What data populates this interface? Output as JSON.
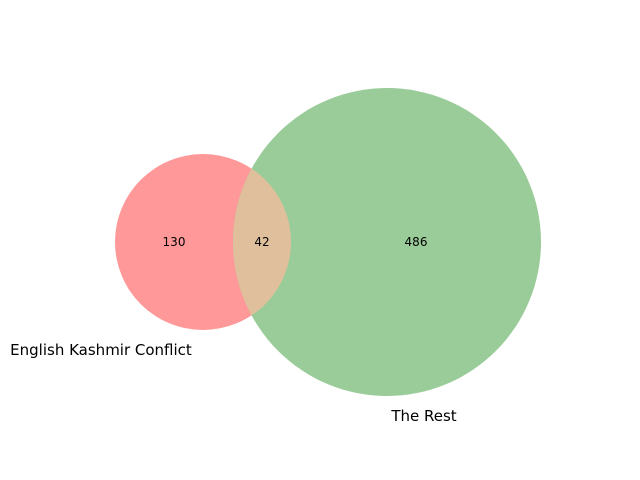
{
  "diagram": {
    "type": "venn2",
    "sets": [
      {
        "label": "English Kashmir Conflict",
        "only_count": "130",
        "color": "#ff9999"
      },
      {
        "label": "The Rest",
        "only_count": "486",
        "color": "#99cc99"
      }
    ],
    "intersection": {
      "count": "42",
      "color": "#e0c09c"
    }
  }
}
